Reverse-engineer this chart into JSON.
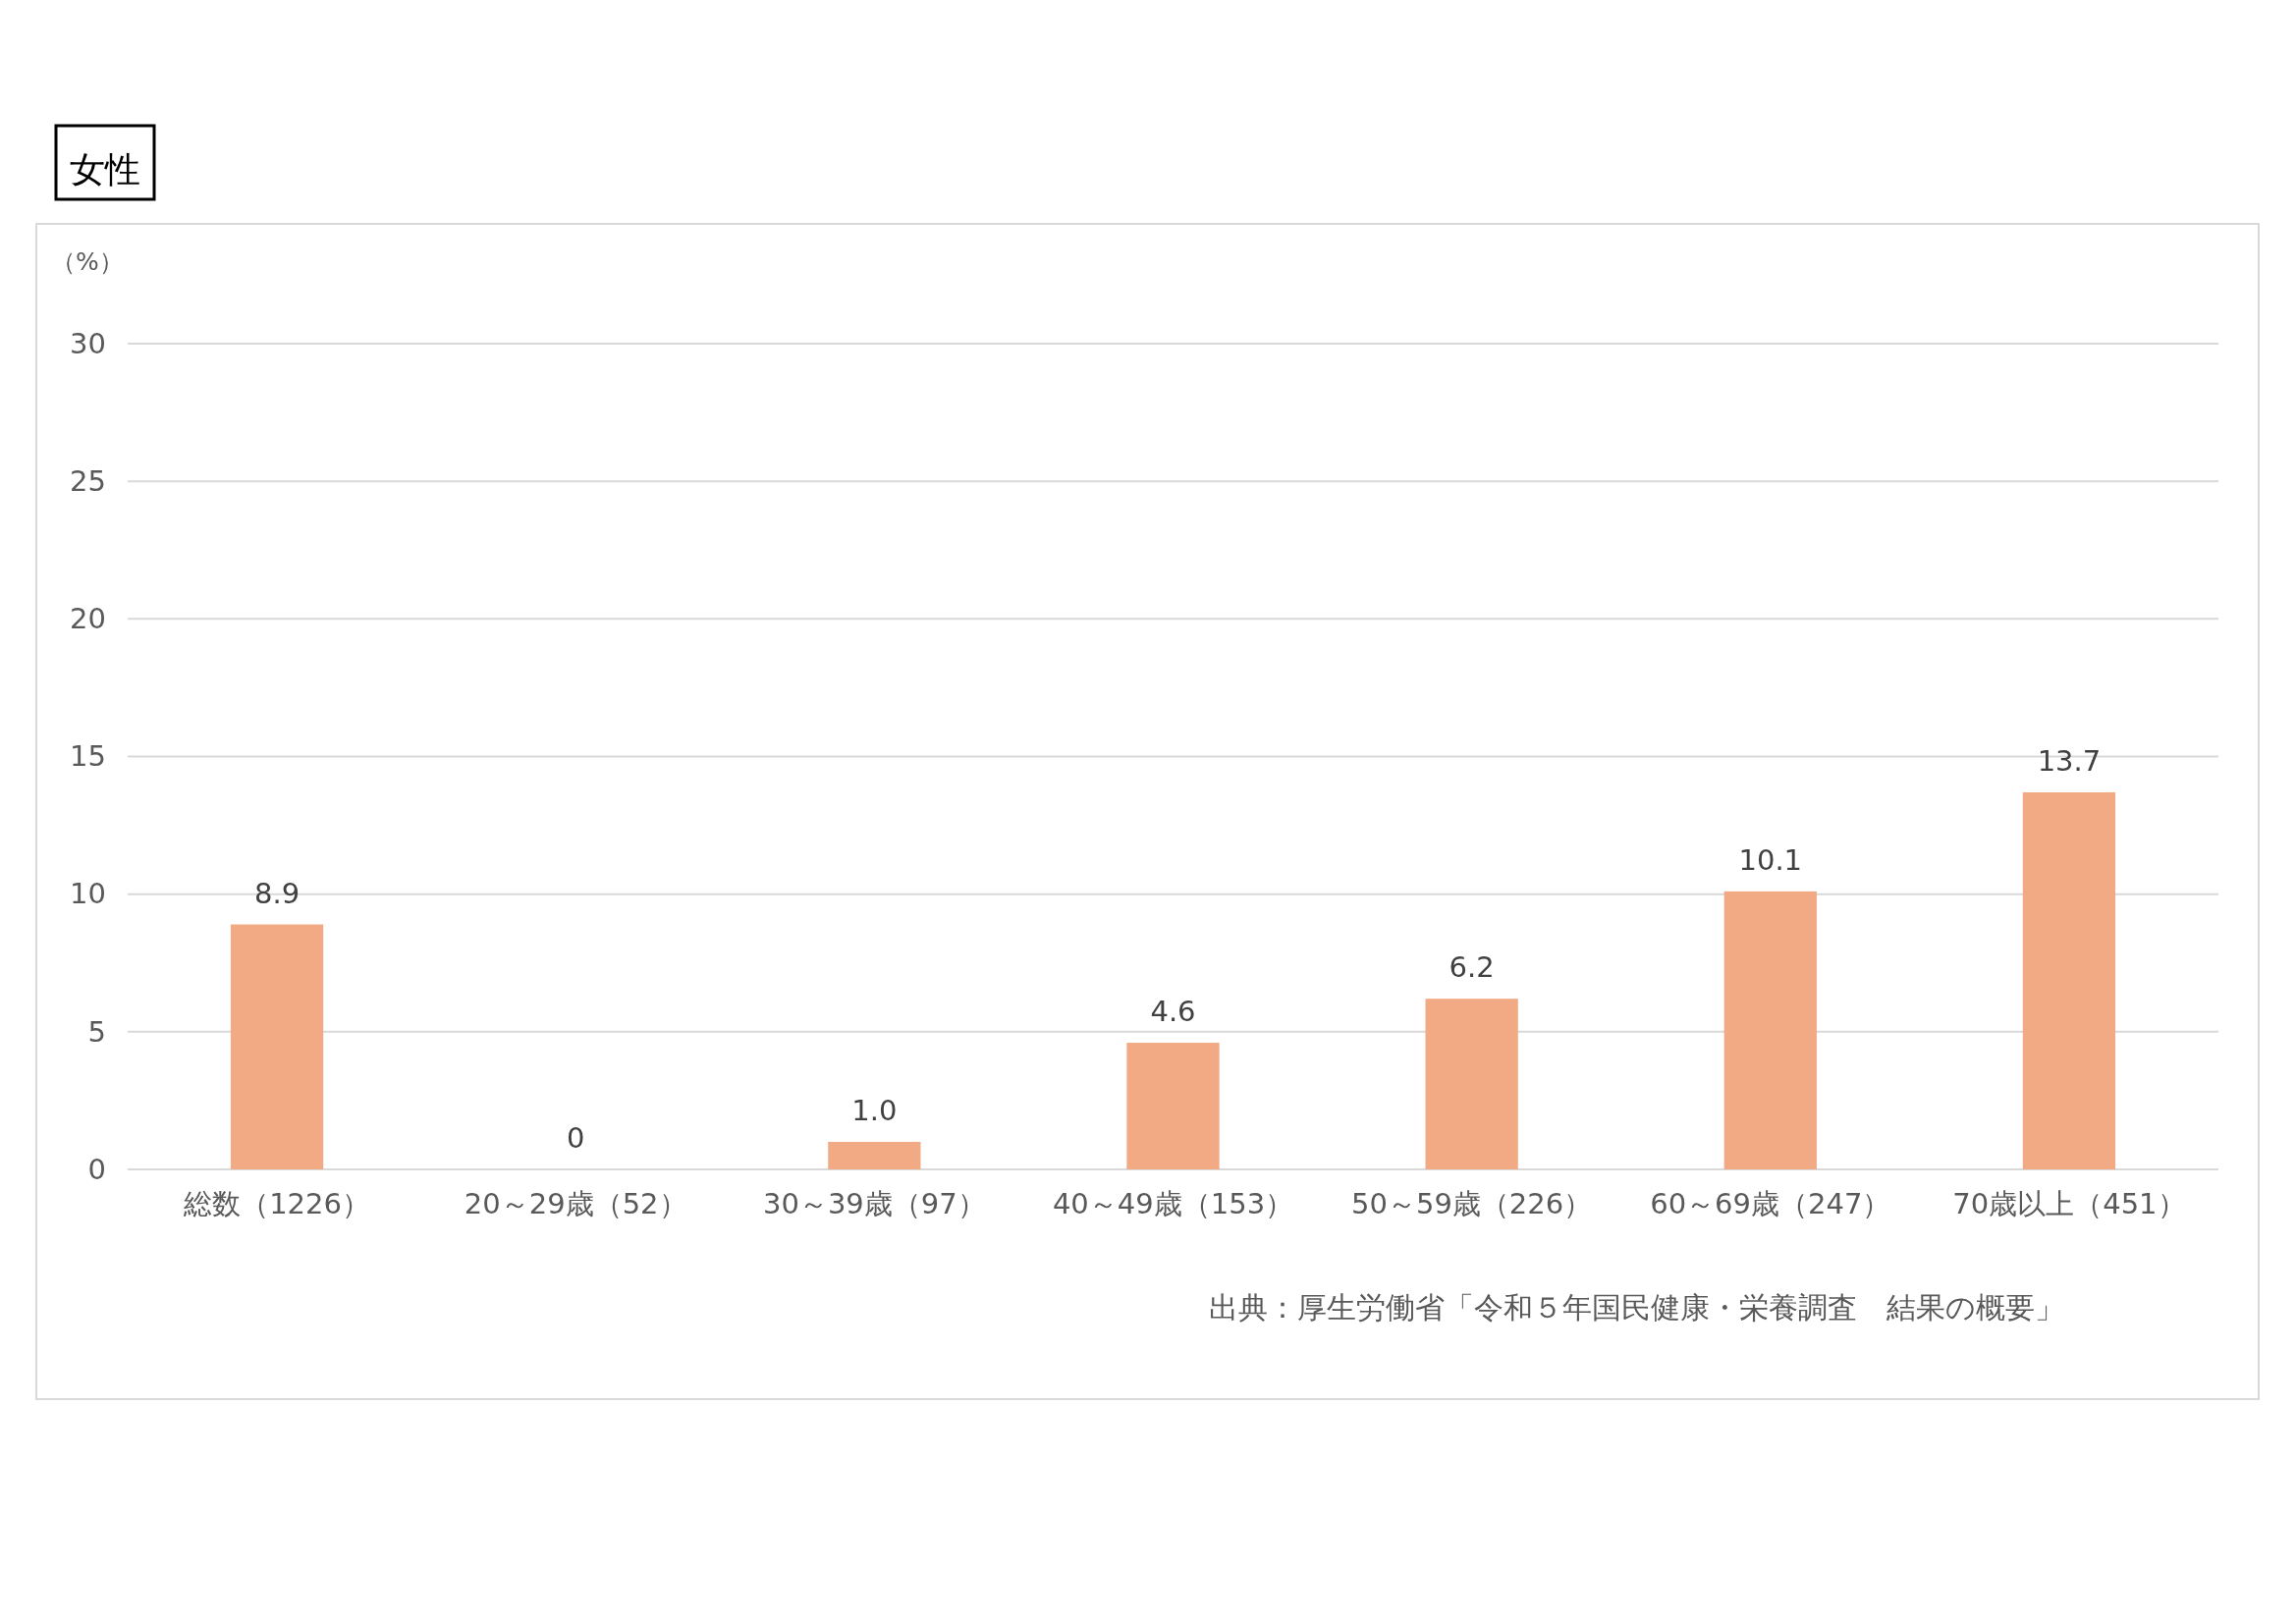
{
  "chart_data": {
    "type": "bar",
    "title": "女性",
    "ylabel": "（%）",
    "categories": [
      "総数（1226）",
      "20～29歳（52）",
      "30～39歳（97）",
      "40～49歳（153）",
      "50～59歳（226）",
      "60～69歳（247）",
      "70歳以上（451）"
    ],
    "values": [
      8.9,
      0,
      1.0,
      4.6,
      6.2,
      10.1,
      13.7
    ],
    "value_labels": [
      "8.9",
      "0",
      "1.0",
      "4.6",
      "6.2",
      "10.1",
      "13.7"
    ],
    "color": "#f2aa84",
    "ylim": [
      0,
      30
    ],
    "yticks": [
      0,
      5,
      10,
      15,
      20,
      25,
      30
    ],
    "grid": "y",
    "annotations": [
      "出典：厚生労働省「令和５年国民健康・栄養調査　結果の概要」"
    ]
  }
}
